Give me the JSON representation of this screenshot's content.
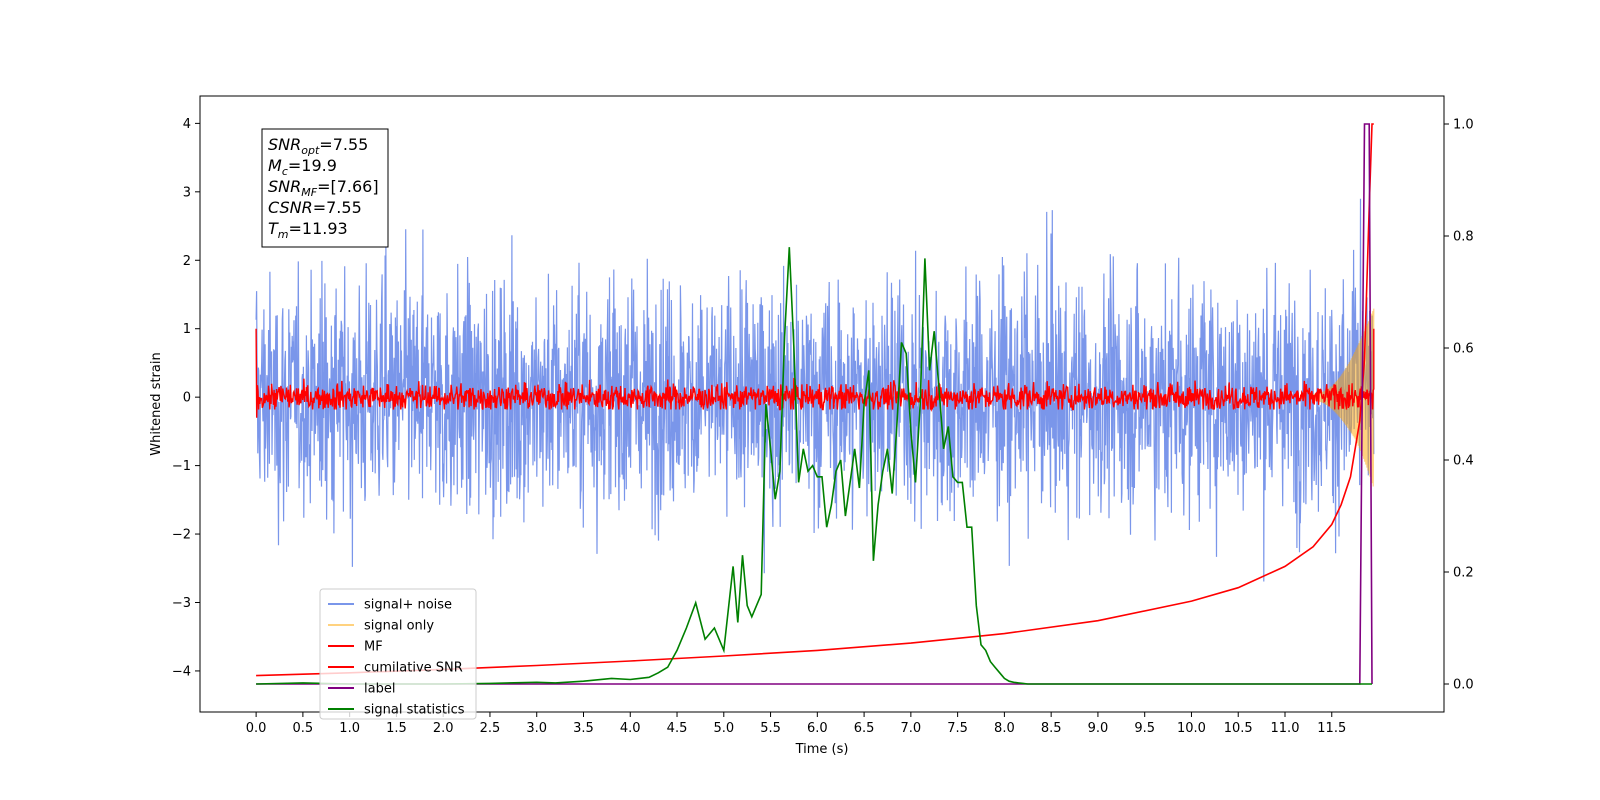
{
  "chart_data": {
    "type": "line",
    "xlabel": "Time (s)",
    "ylabel": "Whitened strain",
    "xlim": [
      -0.6,
      12.7
    ],
    "ylim_left": [
      -4.6,
      4.4
    ],
    "ylim_right": [
      -0.05,
      1.05
    ],
    "x_ticks": [
      "0.0",
      "0.5",
      "1.0",
      "1.5",
      "2.0",
      "2.5",
      "3.0",
      "3.5",
      "4.0",
      "4.5",
      "5.0",
      "5.5",
      "6.0",
      "6.5",
      "7.0",
      "7.5",
      "8.0",
      "8.5",
      "9.0",
      "9.5",
      "10.0",
      "10.5",
      "11.0",
      "11.5"
    ],
    "y_ticks_left": [
      "4",
      "3",
      "2",
      "1",
      "0",
      "−1",
      "−2",
      "−3",
      "−4"
    ],
    "y_ticks_right": [
      "1.0",
      "0.8",
      "0.6",
      "0.4",
      "0.2",
      "0.0"
    ],
    "grid": false,
    "legend_position": "lower-left",
    "annotation_lines": [
      {
        "base": "SNR",
        "sub": "opt",
        "value": "=7.55"
      },
      {
        "base": "M",
        "sub": "c",
        "value": "=19.9"
      },
      {
        "base": "SNR",
        "sub": "MF",
        "value": "=[7.66]"
      },
      {
        "base": "CSNR",
        "sub": "",
        "value": "=7.55"
      },
      {
        "base": "T",
        "sub": "m",
        "value": "=11.93"
      }
    ],
    "series": [
      {
        "name": "signal+ noise",
        "color": "#4169e1",
        "axis": "left",
        "note": "random noise band approx ±2.3 spanning 0.0–11.95 s"
      },
      {
        "name": "signal only",
        "color": "#ffa500",
        "axis": "left",
        "note": "chirp growing near 11.5–11.95 s"
      },
      {
        "name": "MF",
        "color": "#ff0000",
        "axis": "left",
        "note": "noise band approx ±0.2 spanning 0.0–11.95 s"
      },
      {
        "name": "cumilative SNR",
        "color": "#ff0000",
        "axis": "right",
        "x": [
          0.0,
          1.0,
          2.0,
          3.0,
          4.0,
          5.0,
          6.0,
          7.0,
          8.0,
          9.0,
          10.0,
          10.5,
          11.0,
          11.3,
          11.5,
          11.6,
          11.7,
          11.8,
          11.85,
          11.9,
          11.93,
          11.95
        ],
        "y": [
          0.015,
          0.02,
          0.026,
          0.033,
          0.041,
          0.05,
          0.06,
          0.073,
          0.09,
          0.113,
          0.148,
          0.172,
          0.21,
          0.245,
          0.285,
          0.32,
          0.37,
          0.47,
          0.58,
          0.85,
          1.0,
          1.0
        ]
      },
      {
        "name": "label",
        "color": "#800080",
        "axis": "right",
        "x": [
          0.0,
          11.8,
          11.85,
          11.9,
          11.93
        ],
        "y": [
          0.0,
          0.0,
          1.0,
          1.0,
          0.0
        ]
      },
      {
        "name": "signal statistics",
        "color": "#008000",
        "axis": "right",
        "x": [
          0.0,
          0.5,
          1.0,
          2.0,
          2.5,
          3.0,
          3.2,
          3.5,
          3.8,
          4.0,
          4.2,
          4.3,
          4.4,
          4.5,
          4.6,
          4.7,
          4.8,
          4.9,
          5.0,
          5.1,
          5.15,
          5.2,
          5.25,
          5.3,
          5.35,
          5.4,
          5.45,
          5.5,
          5.55,
          5.6,
          5.65,
          5.7,
          5.75,
          5.8,
          5.85,
          5.9,
          5.95,
          6.0,
          6.05,
          6.1,
          6.15,
          6.2,
          6.25,
          6.3,
          6.35,
          6.4,
          6.45,
          6.5,
          6.55,
          6.6,
          6.65,
          6.7,
          6.75,
          6.8,
          6.85,
          6.9,
          6.95,
          7.0,
          7.05,
          7.1,
          7.15,
          7.2,
          7.25,
          7.3,
          7.35,
          7.4,
          7.45,
          7.5,
          7.55,
          7.6,
          7.65,
          7.7,
          7.75,
          7.8,
          7.85,
          7.9,
          7.95,
          8.0,
          8.05,
          8.1,
          8.15,
          8.2,
          8.25,
          8.3,
          8.4,
          8.5,
          8.6,
          8.7,
          8.8,
          9.0,
          9.2,
          9.5,
          10.0,
          11.0,
          11.5,
          11.8,
          11.93
        ],
        "y": [
          0.0,
          0.002,
          0.0,
          0.0,
          0.001,
          0.003,
          0.002,
          0.005,
          0.01,
          0.008,
          0.012,
          0.02,
          0.03,
          0.06,
          0.1,
          0.145,
          0.08,
          0.1,
          0.06,
          0.21,
          0.11,
          0.23,
          0.14,
          0.12,
          0.14,
          0.16,
          0.5,
          0.42,
          0.33,
          0.38,
          0.62,
          0.78,
          0.6,
          0.36,
          0.42,
          0.38,
          0.39,
          0.37,
          0.37,
          0.28,
          0.32,
          0.38,
          0.4,
          0.3,
          0.36,
          0.42,
          0.35,
          0.5,
          0.56,
          0.22,
          0.32,
          0.38,
          0.42,
          0.34,
          0.46,
          0.61,
          0.59,
          0.45,
          0.36,
          0.5,
          0.76,
          0.56,
          0.63,
          0.53,
          0.42,
          0.46,
          0.37,
          0.36,
          0.36,
          0.28,
          0.28,
          0.14,
          0.07,
          0.06,
          0.04,
          0.03,
          0.02,
          0.01,
          0.005,
          0.003,
          0.002,
          0.001,
          0.0,
          0.0,
          0.0,
          0.0,
          0.0,
          0.0,
          0.0,
          0.0,
          0.0,
          0.0,
          0.0,
          0.0,
          0.0,
          0.0,
          0.0
        ]
      }
    ]
  }
}
